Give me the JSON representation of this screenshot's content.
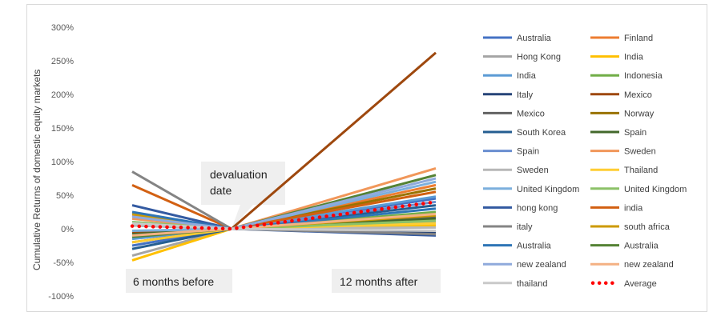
{
  "chart_data": {
    "type": "line",
    "title": "",
    "ylabel": "Cumulative Returns of domestic equity markets",
    "ylim": [
      -100,
      300
    ],
    "yticks": [
      "300%",
      "250%",
      "200%",
      "150%",
      "100%",
      "50%",
      "0%",
      "-50%",
      "-100%"
    ],
    "ytick_values": [
      300,
      250,
      200,
      150,
      100,
      50,
      0,
      -50,
      -100
    ],
    "x": [
      -6,
      0,
      12
    ],
    "grid": false,
    "legend_position": "right",
    "annotations": {
      "left": "6 months before",
      "center": "devaluation\ndate",
      "right": "12 months after"
    },
    "series": [
      {
        "name": "Australia",
        "color": "#4472c4",
        "values": [
          -25,
          0,
          45
        ]
      },
      {
        "name": "Finland",
        "color": "#ed7d31",
        "values": [
          20,
          0,
          65
        ]
      },
      {
        "name": "Hong Kong",
        "color": "#a5a5a5",
        "values": [
          -40,
          0,
          10
        ]
      },
      {
        "name": "India",
        "color": "#ffc000",
        "values": [
          -47,
          0,
          5
        ]
      },
      {
        "name": "India",
        "color": "#5b9bd5",
        "values": [
          -15,
          0,
          48
        ]
      },
      {
        "name": "Indonesia",
        "color": "#70ad47",
        "values": [
          -5,
          0,
          25
        ]
      },
      {
        "name": "Italy",
        "color": "#264478",
        "values": [
          5,
          0,
          -5
        ]
      },
      {
        "name": "Mexico",
        "color": "#9e480e",
        "values": [
          -5,
          0,
          262
        ]
      },
      {
        "name": "Mexico",
        "color": "#636363",
        "values": [
          -10,
          0,
          18
        ]
      },
      {
        "name": "Norway",
        "color": "#997300",
        "values": [
          -20,
          0,
          60
        ]
      },
      {
        "name": "South Korea",
        "color": "#255e91",
        "values": [
          -30,
          0,
          35
        ]
      },
      {
        "name": "Spain",
        "color": "#43682b",
        "values": [
          -8,
          0,
          15
        ]
      },
      {
        "name": "Spain",
        "color": "#698ed0",
        "values": [
          10,
          0,
          40
        ]
      },
      {
        "name": "Sweden",
        "color": "#f1975a",
        "values": [
          15,
          0,
          90
        ]
      },
      {
        "name": "Sweden",
        "color": "#b7b7b7",
        "values": [
          5,
          0,
          2
        ]
      },
      {
        "name": "Thailand",
        "color": "#ffcd33",
        "values": [
          -20,
          0,
          8
        ]
      },
      {
        "name": "United Kingdom",
        "color": "#7cafdd",
        "values": [
          -3,
          0,
          70
        ]
      },
      {
        "name": "United Kingdom",
        "color": "#8cc168",
        "values": [
          10,
          0,
          12
        ]
      },
      {
        "name": "hong kong",
        "color": "#335aa1",
        "values": [
          35,
          0,
          -10
        ]
      },
      {
        "name": "india",
        "color": "#d26012",
        "values": [
          65,
          0,
          55
        ]
      },
      {
        "name": "italy",
        "color": "#848484",
        "values": [
          85,
          0,
          -8
        ]
      },
      {
        "name": "south africa",
        "color": "#cc9a00",
        "values": [
          22,
          0,
          20
        ]
      },
      {
        "name": "Australia",
        "color": "#2e75b6",
        "values": [
          25,
          0,
          30
        ]
      },
      {
        "name": "Australia",
        "color": "#548235",
        "values": [
          -12,
          0,
          80
        ]
      },
      {
        "name": "new zealand",
        "color": "#8faadc",
        "values": [
          18,
          0,
          75
        ]
      },
      {
        "name": "new zealand",
        "color": "#f4b183",
        "values": [
          -10,
          0,
          22
        ]
      },
      {
        "name": "thailand",
        "color": "#c9c9c9",
        "values": [
          8,
          0,
          -3
        ]
      },
      {
        "name": "Average",
        "color": "#ff0000",
        "style": "dotted",
        "values": [
          4,
          0,
          40
        ]
      }
    ]
  }
}
